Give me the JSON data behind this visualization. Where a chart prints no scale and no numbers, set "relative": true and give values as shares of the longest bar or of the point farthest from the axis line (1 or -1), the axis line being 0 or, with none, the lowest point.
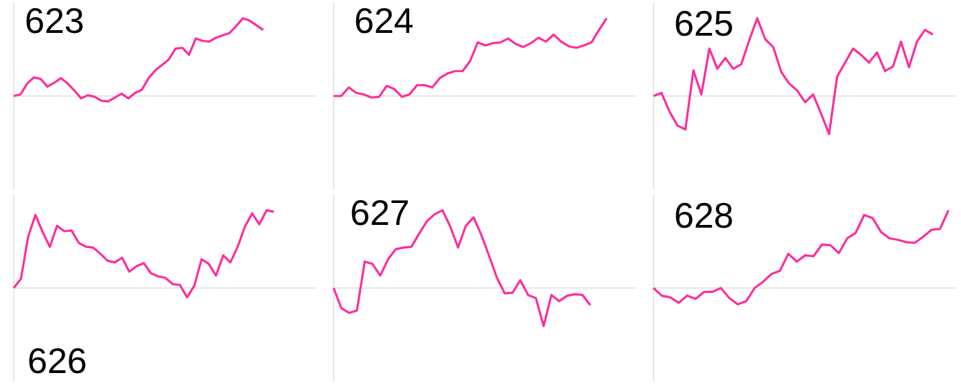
{
  "chart_data": [
    {
      "type": "line",
      "title": "623",
      "relative": true,
      "color": "#ff2d9b",
      "categories": [
        null,
        null,
        null,
        null,
        null,
        null,
        null,
        null,
        null,
        null,
        null,
        null,
        null,
        null,
        null,
        null,
        null,
        null,
        null,
        null,
        null,
        null,
        null,
        null,
        null,
        null,
        null,
        null,
        null,
        null,
        null,
        null,
        null,
        null,
        null,
        null,
        null,
        null,
        null,
        null,
        null,
        null,
        null,
        null,
        null,
        null
      ],
      "values": [
        0,
        0.02,
        0.16,
        0.24,
        0.22,
        0.12,
        0.17,
        0.23,
        0.16,
        0.07,
        -0.03,
        0.01,
        -0.01,
        -0.06,
        -0.07,
        -0.02,
        0.03,
        -0.03,
        0.04,
        0.08,
        0.23,
        0.33,
        0.4,
        0.47,
        0.61,
        0.62,
        0.53,
        0.74,
        0.71,
        0.7,
        0.75,
        0.78,
        0.81,
        0.9,
        1,
        0.97,
        0.91,
        0.85,
        null,
        null,
        null,
        null,
        null,
        null,
        null,
        null
      ]
    },
    {
      "type": "line",
      "title": "624",
      "relative": true,
      "color": "#ff2d9b",
      "categories": [
        null,
        null,
        null,
        null,
        null,
        null,
        null,
        null,
        null,
        null,
        null,
        null,
        null,
        null,
        null,
        null,
        null,
        null,
        null,
        null,
        null,
        null,
        null,
        null,
        null,
        null,
        null,
        null,
        null,
        null,
        null,
        null,
        null,
        null,
        null,
        null,
        null,
        null,
        null,
        null,
        null
      ],
      "values": [
        0,
        0,
        0.11,
        0.04,
        0.02,
        -0.02,
        -0.01,
        0.13,
        0.09,
        -0.01,
        0.02,
        0.14,
        0.14,
        0.11,
        0.23,
        0.29,
        0.32,
        0.32,
        0.45,
        0.69,
        0.65,
        0.68,
        0.69,
        0.74,
        0.67,
        0.63,
        0.68,
        0.75,
        0.7,
        0.79,
        0.7,
        0.64,
        0.62,
        0.65,
        0.69,
        0.85,
        1,
        null,
        null,
        null,
        null
      ]
    },
    {
      "type": "line",
      "title": "625",
      "relative": true,
      "color": "#ff2d9b",
      "categories": [
        null,
        null,
        null,
        null,
        null,
        null,
        null,
        null,
        null,
        null,
        null,
        null,
        null,
        null,
        null,
        null,
        null,
        null,
        null,
        null,
        null,
        null,
        null,
        null,
        null,
        null,
        null,
        null,
        null,
        null,
        null,
        null,
        null,
        null,
        null,
        null,
        null,
        null,
        null
      ],
      "values": [
        0,
        0.04,
        -0.2,
        -0.38,
        -0.43,
        0.33,
        0.02,
        0.61,
        0.35,
        0.49,
        0.35,
        0.41,
        0.72,
        1,
        0.73,
        0.63,
        0.31,
        0.16,
        0.07,
        -0.08,
        0.02,
        -0.23,
        -0.49,
        0.25,
        0.43,
        0.61,
        0.53,
        0.43,
        0.56,
        0.32,
        0.38,
        0.7,
        0.37,
        0.7,
        0.85,
        0.79,
        null,
        null,
        null
      ]
    },
    {
      "type": "line",
      "title": "626",
      "relative": true,
      "color": "#ff2d9b",
      "categories": [
        null,
        null,
        null,
        null,
        null,
        null,
        null,
        null,
        null,
        null,
        null,
        null,
        null,
        null,
        null,
        null,
        null,
        null,
        null,
        null,
        null,
        null,
        null,
        null,
        null,
        null,
        null,
        null,
        null,
        null,
        null,
        null,
        null,
        null,
        null,
        null,
        null,
        null,
        null,
        null,
        null,
        null,
        null
      ],
      "values": [
        0,
        0.12,
        0.66,
        0.94,
        0.72,
        0.53,
        0.8,
        0.73,
        0.74,
        0.58,
        0.53,
        0.52,
        0.44,
        0.35,
        0.33,
        0.39,
        0.21,
        0.28,
        0.32,
        0.19,
        0.15,
        0.13,
        0.05,
        0.04,
        -0.12,
        0.03,
        0.37,
        0.31,
        0.16,
        0.42,
        0.33,
        0.53,
        0.79,
        0.96,
        0.82,
        1,
        0.98,
        null,
        null,
        null,
        null,
        null,
        null
      ]
    },
    {
      "type": "line",
      "title": "627",
      "relative": true,
      "color": "#ff2d9b",
      "categories": [
        null,
        null,
        null,
        null,
        null,
        null,
        null,
        null,
        null,
        null,
        null,
        null,
        null,
        null,
        null,
        null,
        null,
        null,
        null,
        null,
        null,
        null,
        null,
        null,
        null,
        null,
        null,
        null,
        null,
        null,
        null,
        null,
        null,
        null,
        null,
        null,
        null,
        null,
        null,
        null
      ],
      "values": [
        0,
        -0.26,
        -0.32,
        -0.29,
        0.34,
        0.31,
        0.16,
        0.37,
        0.5,
        0.52,
        0.53,
        0.7,
        0.86,
        0.95,
        1,
        0.79,
        0.52,
        0.8,
        0.91,
        0.68,
        0.41,
        0.13,
        -0.07,
        -0.06,
        0.1,
        -0.09,
        -0.13,
        -0.49,
        -0.09,
        -0.17,
        -0.1,
        -0.08,
        -0.09,
        -0.22,
        null,
        null,
        null,
        null,
        null,
        null
      ]
    },
    {
      "type": "line",
      "title": "628",
      "relative": true,
      "color": "#ff2d9b",
      "categories": [
        null,
        null,
        null,
        null,
        null,
        null,
        null,
        null,
        null,
        null,
        null,
        null,
        null,
        null,
        null,
        null,
        null,
        null,
        null,
        null,
        null,
        null,
        null,
        null,
        null,
        null,
        null,
        null,
        null,
        null,
        null,
        null,
        null,
        null,
        null,
        null,
        null
      ],
      "values": [
        0,
        -0.1,
        -0.12,
        -0.19,
        -0.1,
        -0.14,
        -0.05,
        -0.05,
        0,
        -0.13,
        -0.21,
        -0.17,
        0,
        0.08,
        0.18,
        0.22,
        0.44,
        0.34,
        0.42,
        0.41,
        0.56,
        0.55,
        0.45,
        0.64,
        0.71,
        0.94,
        0.9,
        0.72,
        0.64,
        0.62,
        0.59,
        0.58,
        0.66,
        0.75,
        0.76,
        1,
        null
      ]
    }
  ]
}
